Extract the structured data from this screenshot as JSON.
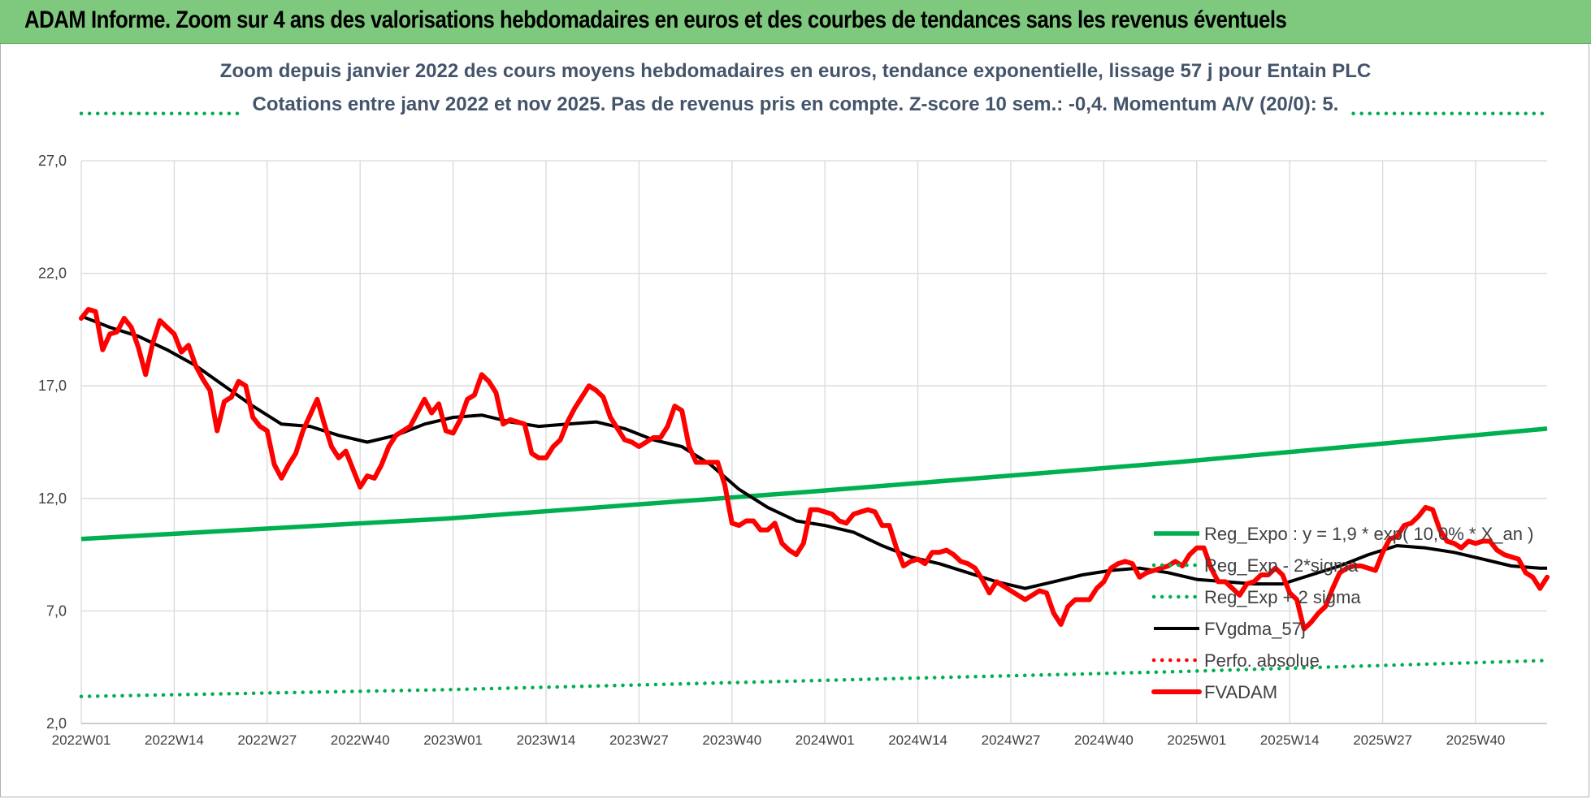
{
  "banner": {
    "title": "ADAM Informe. Zoom sur 4 ans des valorisations hebdomadaires en euros et des courbes de tendances sans les revenus éventuels"
  },
  "colors": {
    "banner_bg": "#7ec97e",
    "reg_expo": "#00b050",
    "fvgdma": "#000000",
    "fvadam": "#ff0000",
    "perfo": "#ff0000",
    "subtitle": "#44546a"
  },
  "chart_data": {
    "type": "line",
    "title": [
      "Zoom depuis janvier 2022 des cours moyens hebdomadaires en euros, tendance exponentielle, lissage 57 j pour Entain PLC",
      "Cotations entre janv 2022 et nov 2025. Pas de revenus pris en compte. Z-score 10 sem.: -0,4.  Momentum A/V (20/0): 5."
    ],
    "ylim": [
      2,
      27
    ],
    "yticks": [
      "2,0",
      "7,0",
      "12,0",
      "17,0",
      "22,0",
      "27,0"
    ],
    "ytick_values": [
      2,
      7,
      12,
      17,
      22,
      27
    ],
    "xticks": [
      "2022W01",
      "2022W14",
      "2022W27",
      "2022W40",
      "2023W01",
      "2023W14",
      "2023W27",
      "2023W40",
      "2024W01",
      "2024W14",
      "2024W27",
      "2024W40",
      "2025W01",
      "2025W14",
      "2025W27",
      "2025W40"
    ],
    "xtick_index": [
      0,
      13,
      26,
      39,
      52,
      65,
      78,
      91,
      104,
      117,
      130,
      143,
      156,
      169,
      182,
      195
    ],
    "x_count": 206,
    "grid": true,
    "legend_position": "right",
    "series": [
      {
        "name": "Reg_Expo : y = 1,9 * exp( 10,0% * X_an )",
        "style": "solid",
        "color": "#00b050",
        "x": [
          0,
          51,
          102,
          153,
          205
        ],
        "values": [
          10.2,
          11.1,
          12.3,
          13.6,
          15.1
        ]
      },
      {
        "name": "Reg_Exp - 2*sigma",
        "style": "dotted",
        "color": "#00b050",
        "x": [
          0,
          51,
          102,
          153,
          205
        ],
        "values": [
          3.2,
          3.5,
          3.9,
          4.3,
          4.8
        ]
      },
      {
        "name": "Reg_Exp + 2 sigma",
        "style": "dotted",
        "color": "#00b050",
        "x": [
          0,
          205
        ],
        "values": [
          29.1,
          29.1
        ]
      },
      {
        "name": "FVgdma_57j",
        "style": "solid",
        "color": "#000000",
        "x": [
          0,
          4,
          8,
          12,
          16,
          20,
          24,
          28,
          32,
          36,
          40,
          44,
          48,
          52,
          56,
          60,
          64,
          68,
          72,
          76,
          80,
          84,
          88,
          92,
          96,
          100,
          104,
          108,
          112,
          116,
          120,
          124,
          128,
          132,
          136,
          140,
          144,
          148,
          152,
          156,
          160,
          164,
          168,
          172,
          176,
          180,
          184,
          188,
          192,
          196,
          200,
          204,
          205
        ],
        "values": [
          20.1,
          19.6,
          19.2,
          18.6,
          17.9,
          17.0,
          16.1,
          15.3,
          15.2,
          14.8,
          14.5,
          14.8,
          15.3,
          15.6,
          15.7,
          15.4,
          15.2,
          15.3,
          15.4,
          15.1,
          14.6,
          14.3,
          13.5,
          12.4,
          11.6,
          11.0,
          10.8,
          10.5,
          9.9,
          9.4,
          9.1,
          8.7,
          8.3,
          8.0,
          8.3,
          8.6,
          8.8,
          8.9,
          8.7,
          8.4,
          8.3,
          8.2,
          8.2,
          8.6,
          9.0,
          9.5,
          9.9,
          9.8,
          9.6,
          9.3,
          9.0,
          8.9,
          8.9
        ]
      },
      {
        "name": "Perfo. absolue",
        "style": "dotted",
        "color": "#ff0000",
        "x": [],
        "values": []
      },
      {
        "name": "FVADAM",
        "style": "solid",
        "color": "#ff0000",
        "x": [
          0,
          1,
          2,
          3,
          4,
          5,
          6,
          7,
          8,
          9,
          10,
          11,
          12,
          13,
          14,
          15,
          16,
          17,
          18,
          19,
          20,
          21,
          22,
          23,
          24,
          25,
          26,
          27,
          28,
          29,
          30,
          31,
          32,
          33,
          34,
          35,
          36,
          37,
          38,
          39,
          40,
          41,
          42,
          43,
          44,
          45,
          46,
          47,
          48,
          49,
          50,
          51,
          52,
          53,
          54,
          55,
          56,
          57,
          58,
          59,
          60,
          61,
          62,
          63,
          64,
          65,
          66,
          67,
          68,
          69,
          70,
          71,
          72,
          73,
          74,
          75,
          76,
          77,
          78,
          79,
          80,
          81,
          82,
          83,
          84,
          85,
          86,
          87,
          88,
          89,
          90,
          91,
          92,
          93,
          94,
          95,
          96,
          97,
          98,
          99,
          100,
          101,
          102,
          103,
          104,
          105,
          106,
          107,
          108,
          109,
          110,
          111,
          112,
          113,
          114,
          115,
          116,
          117,
          118,
          119,
          120,
          121,
          122,
          123,
          124,
          125,
          126,
          127,
          128,
          129,
          130,
          131,
          132,
          133,
          134,
          135,
          136,
          137,
          138,
          139,
          140,
          141,
          142,
          143,
          144,
          145,
          146,
          147,
          148,
          149,
          150,
          151,
          152,
          153,
          154,
          155,
          156,
          157,
          158,
          159,
          160,
          161,
          162,
          163,
          164,
          165,
          166,
          167,
          168,
          169,
          170,
          171,
          172,
          173,
          174,
          175,
          176,
          177,
          178,
          179,
          180,
          181,
          182,
          183,
          184,
          185,
          186,
          187,
          188,
          189,
          190,
          191,
          192,
          193,
          194,
          195,
          196,
          197,
          198,
          199,
          200,
          201,
          202,
          203,
          204,
          205
        ],
        "values": [
          20.0,
          20.4,
          20.3,
          18.6,
          19.3,
          19.4,
          20.0,
          19.6,
          18.7,
          17.5,
          18.9,
          19.9,
          19.6,
          19.3,
          18.5,
          18.8,
          17.9,
          17.3,
          16.8,
          15.0,
          16.3,
          16.5,
          17.2,
          17.0,
          15.6,
          15.2,
          15.0,
          13.5,
          12.9,
          13.5,
          14.0,
          15.0,
          15.7,
          16.4,
          15.3,
          14.3,
          13.8,
          14.1,
          13.3,
          12.5,
          13.0,
          12.9,
          13.5,
          14.3,
          14.8,
          15.0,
          15.2,
          15.8,
          16.4,
          15.8,
          16.2,
          15.0,
          14.9,
          15.5,
          16.4,
          16.6,
          17.5,
          17.2,
          16.7,
          15.3,
          15.5,
          15.4,
          15.3,
          14.0,
          13.8,
          13.8,
          14.3,
          14.6,
          15.4,
          16.0,
          16.5,
          17.0,
          16.8,
          16.5,
          15.6,
          15.1,
          14.6,
          14.5,
          14.3,
          14.5,
          14.7,
          14.7,
          15.2,
          16.1,
          15.9,
          14.3,
          13.6,
          13.6,
          13.6,
          13.6,
          12.6,
          10.9,
          10.8,
          11.0,
          11.0,
          10.6,
          10.6,
          10.9,
          10.0,
          9.7,
          9.5,
          10.0,
          11.5,
          11.5,
          11.4,
          11.3,
          11.0,
          10.9,
          11.3,
          11.4,
          11.5,
          11.4,
          10.8,
          10.8,
          9.8,
          9.0,
          9.2,
          9.3,
          9.1,
          9.6,
          9.6,
          9.7,
          9.5,
          9.2,
          9.1,
          8.9,
          8.4,
          7.8,
          8.3,
          8.1,
          7.9,
          7.7,
          7.5,
          7.7,
          7.9,
          7.8,
          6.9,
          6.4,
          7.2,
          7.5,
          7.5,
          7.5,
          8.0,
          8.3,
          8.9,
          9.1,
          9.2,
          9.1,
          8.5,
          8.7,
          8.8,
          8.9,
          9.0,
          9.2,
          9.0,
          9.5,
          9.8,
          9.8,
          8.9,
          8.3,
          8.3,
          8.0,
          7.7,
          8.2,
          8.3,
          8.6,
          8.6,
          8.9,
          8.6,
          7.8,
          7.5,
          6.2,
          6.5,
          6.9,
          7.2,
          8.0,
          8.7,
          8.9,
          9.0,
          9.0,
          8.9,
          8.8,
          9.6,
          10.2,
          10.3,
          10.8,
          10.9,
          11.2,
          11.6,
          11.5,
          10.6,
          10.1,
          10.0,
          9.8,
          10.1,
          10.0,
          10.1,
          10.1,
          9.7,
          9.5,
          9.4,
          9.3,
          8.7,
          8.5,
          8.0,
          8.5
        ]
      }
    ]
  }
}
